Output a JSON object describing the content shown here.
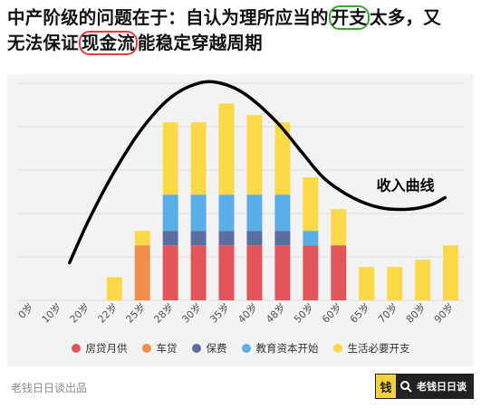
{
  "headline": {
    "line1_pre": "中产阶级的问题在于：自认为理所应当的",
    "line1_green": "开支",
    "line1_post": "太多，又",
    "line2_pre": "无法保证",
    "line2_red": "现金流",
    "line2_post": "能稳定穿越周期"
  },
  "colors": {
    "mortgage": "#e15759",
    "car": "#f28e4b",
    "insurance": "#5b6ea3",
    "education": "#5aaee8",
    "living": "#fdd94a",
    "highlight_green": "#3aa435",
    "highlight_red": "#e0403f"
  },
  "chart_data": {
    "type": "bar",
    "stacked": true,
    "categories": [
      "0岁",
      "10岁",
      "20岁",
      "22岁",
      "25岁",
      "28岁",
      "30岁",
      "35岁",
      "40岁",
      "48岁",
      "50岁",
      "60岁",
      "65岁",
      "70岁",
      "80岁",
      "90岁"
    ],
    "series": [
      {
        "name": "房贷月供",
        "color": "#e15759",
        "values": [
          0,
          0,
          0,
          0,
          0,
          3.8,
          3.8,
          3.8,
          3.8,
          3.8,
          3.8,
          3.8,
          0,
          0,
          0,
          0
        ]
      },
      {
        "name": "车贷",
        "color": "#f28e4b",
        "values": [
          0,
          0,
          0,
          0,
          3.8,
          0,
          0,
          0,
          0,
          0,
          0,
          0,
          0,
          0,
          0,
          0
        ]
      },
      {
        "name": "保费",
        "color": "#5b6ea3",
        "values": [
          0,
          0,
          0,
          0,
          0,
          1.0,
          1.0,
          1.0,
          1.0,
          1.0,
          0,
          0,
          0,
          0,
          0,
          0
        ]
      },
      {
        "name": "教育资本开始",
        "color": "#5aaee8",
        "values": [
          0,
          0,
          0,
          0,
          0,
          2.5,
          2.5,
          2.5,
          2.5,
          2.5,
          1.0,
          0,
          0,
          0,
          0,
          0
        ]
      },
      {
        "name": "生活必要开支",
        "color": "#fdd94a",
        "values": [
          0,
          0,
          0,
          1.6,
          1.0,
          5.0,
          5.0,
          6.3,
          5.5,
          5.0,
          3.7,
          2.5,
          2.3,
          2.3,
          2.8,
          3.8
        ]
      }
    ],
    "ylim": [
      0,
      15
    ],
    "grid": true,
    "legend": "bottom",
    "curve": {
      "label": "收入曲线",
      "points": [
        [
          1.9,
          2.6
        ],
        [
          2.6,
          5.6
        ],
        [
          3.5,
          8.9
        ],
        [
          4.5,
          11.9
        ],
        [
          5.5,
          14.0
        ],
        [
          6.5,
          15.0
        ],
        [
          7.3,
          15.0
        ],
        [
          8.2,
          14.2
        ],
        [
          9.3,
          12.3
        ],
        [
          10.2,
          10.2
        ],
        [
          11.0,
          8.4
        ],
        [
          12.0,
          7.1
        ],
        [
          13.0,
          6.4
        ],
        [
          14.0,
          6.3
        ],
        [
          14.8,
          6.6
        ],
        [
          15.3,
          7.1
        ]
      ]
    }
  },
  "footer": {
    "source": "老钱日日谈出品",
    "brand_logo": "钱",
    "brand_text": "老钱日日谈",
    "search_icon": "search-icon"
  }
}
